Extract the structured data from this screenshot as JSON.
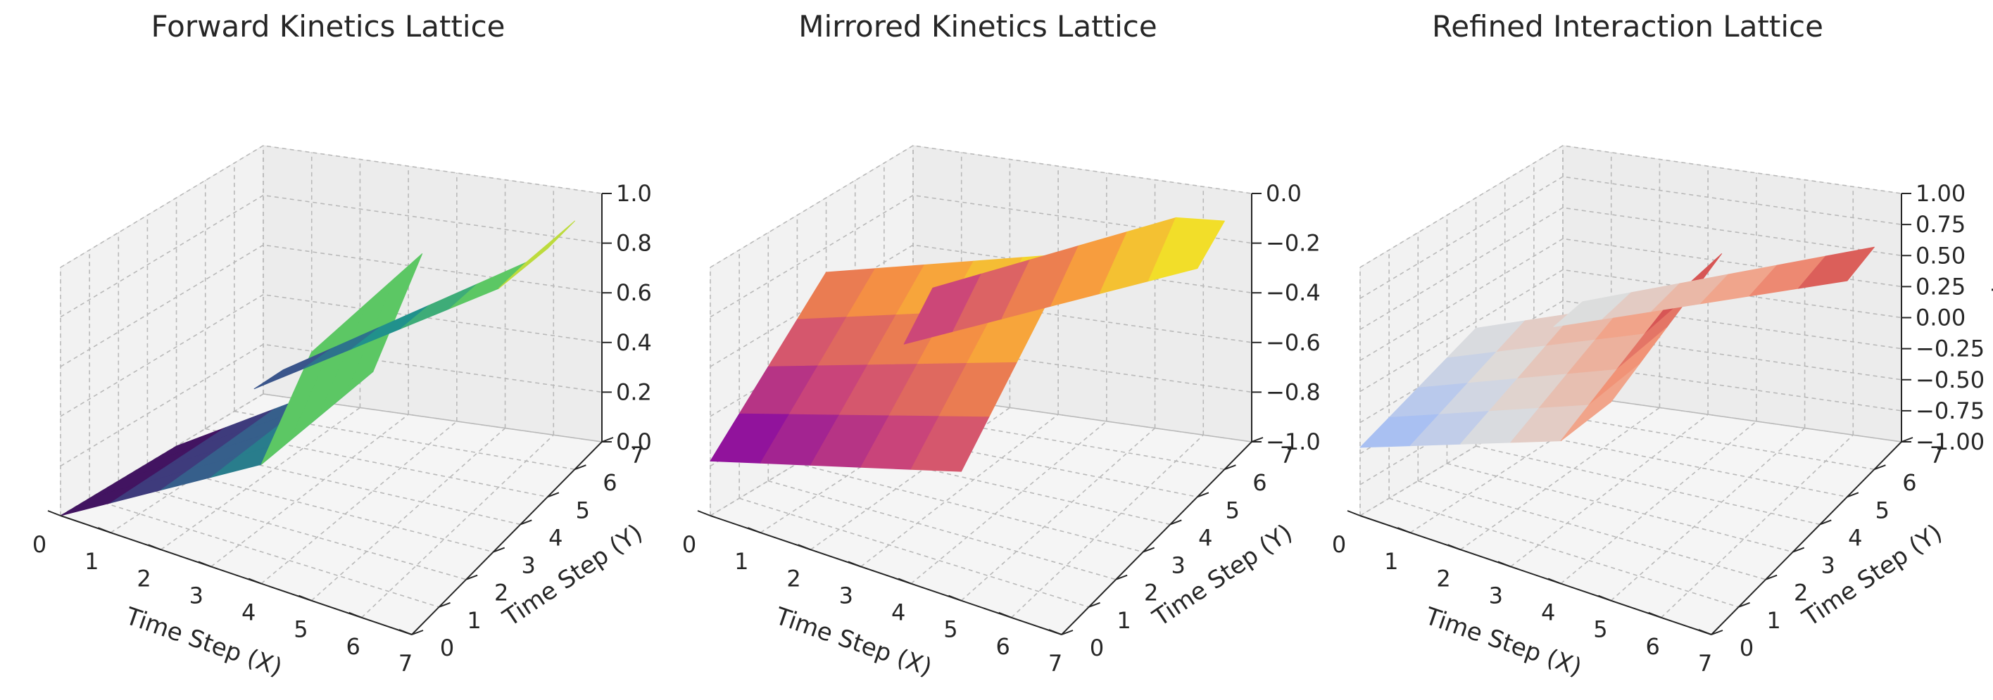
{
  "chart_data": [
    {
      "type": "surface3d",
      "title": "Forward Kinetics Lattice",
      "xlabel": "Time Step (X)",
      "ylabel": "Time Step (Y)",
      "zlabel": "",
      "colormap": "viridis",
      "x_ticks": [
        0,
        1,
        2,
        3,
        4,
        5,
        6,
        7
      ],
      "y_ticks": [
        0,
        1,
        2,
        3,
        4,
        5,
        6,
        7
      ],
      "z_ticks": [
        "0.0",
        "0.2",
        "0.4",
        "0.6",
        "0.8",
        "1.0"
      ],
      "xlim": [
        0,
        7
      ],
      "ylim": [
        0,
        7
      ],
      "zlim": [
        0,
        1
      ],
      "grid": true,
      "sheets": [
        {
          "x": [
            0,
            5
          ],
          "y": [
            0,
            4
          ],
          "z_start": 0.0,
          "z_step_x": 0.12,
          "z_step_y": 0.0,
          "z_extra_last_x": 0.4
        },
        {
          "x": [
            1,
            7
          ],
          "y": [
            5,
            6
          ],
          "z_start": 0.2,
          "z_step_x": 0.12,
          "z_step_y": 0.0,
          "z_extra_last_x": 0.3
        }
      ]
    },
    {
      "type": "surface3d",
      "title": "Mirrored Kinetics Lattice",
      "xlabel": "Time Step (X)",
      "ylabel": "Time Step (Y)",
      "zlabel": "",
      "colormap": "plasma",
      "x_ticks": [
        0,
        1,
        2,
        3,
        4,
        5,
        6,
        7
      ],
      "y_ticks": [
        0,
        1,
        2,
        3,
        4,
        5,
        6,
        7
      ],
      "z_ticks": [
        "−1.0",
        "−0.8",
        "−0.6",
        "−0.4",
        "−0.2",
        "0.0"
      ],
      "xlim": [
        0,
        7
      ],
      "ylim": [
        0,
        7
      ],
      "zlim": [
        -1,
        0
      ],
      "grid": true,
      "sheets": [
        {
          "x": [
            0,
            5
          ],
          "y": [
            0,
            4
          ],
          "z_start": -0.78,
          "z_step_x": 0.06,
          "z_step_y": 0.12,
          "z_extra_last_x": 0.0
        },
        {
          "x": [
            1,
            7
          ],
          "y": [
            5,
            6
          ],
          "z_start": -0.62,
          "z_step_x": 0.09,
          "z_step_y": 0.15,
          "z_extra_last_x": 0.0
        }
      ]
    },
    {
      "type": "surface3d",
      "title": "Refined Interaction Lattice",
      "xlabel": "Time Step (X)",
      "ylabel": "Time Step (Y)",
      "zlabel": "Amplitude",
      "colormap": "coolwarm",
      "x_ticks": [
        0,
        1,
        2,
        3,
        4,
        5,
        6,
        7
      ],
      "y_ticks": [
        0,
        1,
        2,
        3,
        4,
        5,
        6,
        7
      ],
      "z_ticks": [
        "−1.00",
        "−0.75",
        "−0.50",
        "−0.25",
        "0.00",
        "0.25",
        "0.50",
        "0.75",
        "1.00"
      ],
      "xlim": [
        0,
        7
      ],
      "ylim": [
        0,
        7
      ],
      "zlim": [
        -1,
        1
      ],
      "grid": true,
      "sheets": [
        {
          "x": [
            0,
            5
          ],
          "y": [
            0,
            4
          ],
          "z_start": -0.45,
          "z_step_x": 0.15,
          "z_step_y": 0.1,
          "z_extra_last_x": 0.3
        },
        {
          "x": [
            1,
            7
          ],
          "y": [
            5,
            6
          ],
          "z_start": -0.1,
          "z_step_x": 0.14,
          "z_step_y": 0.05,
          "z_extra_last_x": 0.0
        }
      ]
    }
  ]
}
